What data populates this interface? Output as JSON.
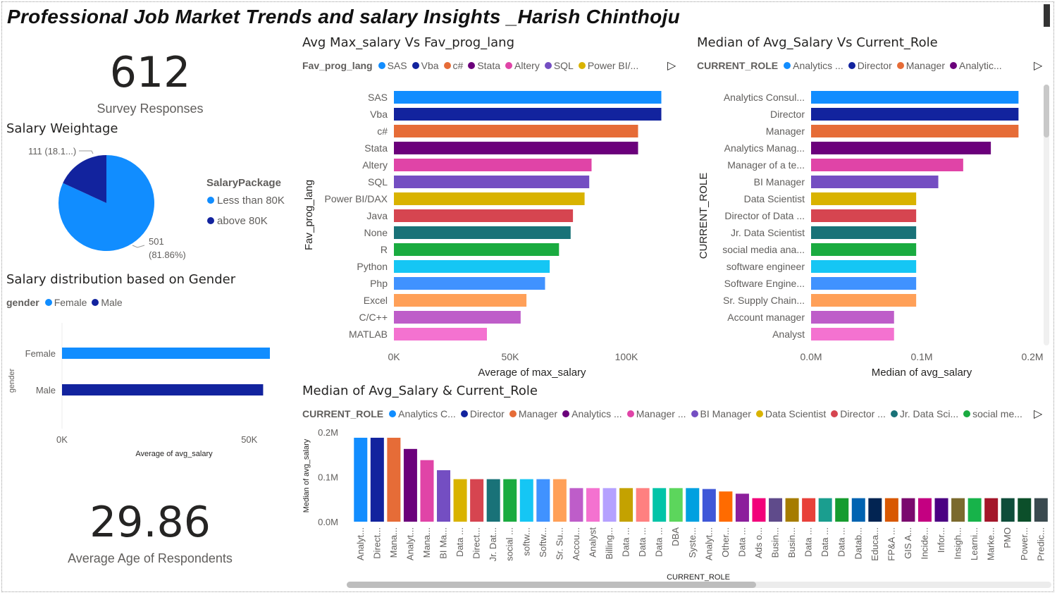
{
  "title": "Professional Job Market Trends and salary Insights _Harish Chinthoju",
  "kpi_responses": {
    "value": "612",
    "label": "Survey Responses"
  },
  "kpi_age": {
    "value": "29.86",
    "label": "Average Age of Respondents"
  },
  "pie_card": {
    "title": "Salary Weightage",
    "legend_title": "SalaryPackage",
    "label_small": "111 (18.1...)",
    "label_large_value": "501",
    "label_large_pct": "(81.86%)"
  },
  "gender_card": {
    "title": "Salary distribution based on Gender",
    "legend_title": "gender",
    "xlabel": "Average of avg_salary",
    "ylabel": "gender"
  },
  "lang_card": {
    "title": "Avg Max_salary Vs Fav_prog_lang",
    "legend_title": "Fav_prog_lang",
    "legend_items": [
      "SAS",
      "Vba",
      "c#",
      "Stata",
      "Altery",
      "SQL",
      "Power BI/..."
    ]
  },
  "role_card": {
    "title": "Median of Avg_Salary Vs Current_Role",
    "legend_title": "CURRENT_ROLE",
    "legend_items": [
      "Analytics ...",
      "Director",
      "Manager",
      "Analytic..."
    ]
  },
  "role_col_card": {
    "title": "Median of Avg_Salary & Current_Role",
    "legend_title": "CURRENT_ROLE",
    "legend_items": [
      "Analytics C...",
      "Director",
      "Manager",
      "Analytics ...",
      "Manager ...",
      "BI Manager",
      "Data Scientist",
      "Director ...",
      "Jr. Data Sci...",
      "social me..."
    ]
  },
  "colors": {
    "blue": "#118dff",
    "navy": "#12239e",
    "orange": "#e66c37",
    "purple": "#6b007b",
    "pink": "#e044a7",
    "violet": "#744ec2",
    "yellow": "#d9b300",
    "red": "#d64550",
    "teal": "#197278",
    "green": "#1aab40",
    "cyan": "#15c6f4",
    "cornflower": "#4092ff",
    "peach": "#ffa058",
    "magenta": "#be5dc9",
    "rose": "#f472d0"
  },
  "chart_data": [
    {
      "id": "salary_weightage",
      "type": "pie",
      "title": "Salary Weightage",
      "legend_title": "SalaryPackage",
      "labels": [
        "Less than 80K",
        "above 80K"
      ],
      "values": [
        501,
        111
      ],
      "colors": [
        "#118dff",
        "#12239e"
      ]
    },
    {
      "id": "gender",
      "type": "bar",
      "orientation": "horizontal",
      "title": "Salary distribution based on Gender",
      "categories": [
        "Female",
        "Male"
      ],
      "values": [
        55500,
        53700
      ],
      "colors": [
        "#118dff",
        "#12239e"
      ],
      "xlabel": "Average of avg_salary",
      "ylabel": "gender",
      "xlim": [
        0,
        55500
      ],
      "xticks": [
        {
          "v": 0,
          "label": "0K"
        },
        {
          "v": 50000,
          "label": "50K"
        }
      ],
      "grid": false
    },
    {
      "id": "fav_prog_lang",
      "type": "bar",
      "orientation": "horizontal",
      "title": "Avg Max_salary Vs Fav_prog_lang",
      "categories": [
        "SAS",
        "Vba",
        "c#",
        "Stata",
        "Altery",
        "SQL",
        "Power BI/DAX",
        "Java",
        "None",
        "R",
        "Python",
        "Php",
        "Excel",
        "C/C++",
        "MATLAB"
      ],
      "values": [
        115000,
        115000,
        105000,
        105000,
        85000,
        84000,
        82000,
        77000,
        76000,
        71000,
        67000,
        65000,
        57000,
        54500,
        40000
      ],
      "colors": [
        "#118dff",
        "#12239e",
        "#e66c37",
        "#6b007b",
        "#e044a7",
        "#744ec2",
        "#d9b300",
        "#d64550",
        "#197278",
        "#1aab40",
        "#15c6f4",
        "#4092ff",
        "#ffa058",
        "#be5dc9",
        "#f472d0"
      ],
      "xlabel": "Average of max_salary",
      "ylabel": "Fav_prog_lang",
      "xlim": [
        0,
        120000
      ],
      "xticks": [
        {
          "v": 0,
          "label": "0K"
        },
        {
          "v": 50000,
          "label": "50K"
        },
        {
          "v": 100000,
          "label": "100K"
        }
      ],
      "grid": false
    },
    {
      "id": "current_role_bar",
      "type": "bar",
      "orientation": "horizontal",
      "title": "Median of Avg_Salary Vs Current_Role",
      "categories": [
        "Analytics Consul...",
        "Director",
        "Manager",
        "Analytics Manag...",
        "Manager of a te...",
        "BI Manager",
        "Data Scientist",
        "Director of Data ...",
        "Jr. Data Scientist",
        "social media ana...",
        "software engineer",
        "Software Engine...",
        "Sr. Supply Chain...",
        "Account manager",
        "Analyst"
      ],
      "values": [
        187500,
        187500,
        187500,
        162500,
        137500,
        115000,
        95000,
        95000,
        95000,
        95000,
        95000,
        95000,
        95000,
        75000,
        75000
      ],
      "colors": [
        "#118dff",
        "#12239e",
        "#e66c37",
        "#6b007b",
        "#e044a7",
        "#744ec2",
        "#d9b300",
        "#d64550",
        "#197278",
        "#1aab40",
        "#15c6f4",
        "#4092ff",
        "#ffa058",
        "#be5dc9",
        "#f472d0"
      ],
      "xlabel": "Median of avg_salary",
      "ylabel": "CURRENT_ROLE",
      "xlim": [
        0,
        200000
      ],
      "xticks": [
        {
          "v": 0,
          "label": "0.0M"
        },
        {
          "v": 100000,
          "label": "0.1M"
        },
        {
          "v": 200000,
          "label": "0.2M"
        }
      ],
      "grid": false
    },
    {
      "id": "current_role_column",
      "type": "bar",
      "orientation": "vertical",
      "title": "Median of Avg_Salary & Current_Role",
      "categories": [
        "Analyt...",
        "Direct...",
        "Mana...",
        "Analyt...",
        "Mana...",
        "BI Ma...",
        "Data ...",
        "Direct...",
        "Jr. Dat...",
        "social ...",
        "softw...",
        "Softw...",
        "Sr. Su...",
        "Accou...",
        "Analyst",
        "Billing...",
        "Data ...",
        "Data ...",
        "Data ...",
        "DBA",
        "Syste...",
        "Analyt...",
        "Other...",
        "Data ...",
        "Ads o...",
        "Busin...",
        "Busin...",
        "Data ...",
        "Data ...",
        "Data ...",
        "Datab...",
        "Educa...",
        "FP&A ...",
        "GIS A...",
        "Incide...",
        "Infor...",
        "Insigh...",
        "Learni...",
        "Marke...",
        "PMO",
        "Power...",
        "Predic..."
      ],
      "values": [
        187500,
        187500,
        187500,
        162500,
        137500,
        115000,
        95000,
        95000,
        95000,
        95000,
        95000,
        95000,
        95000,
        75000,
        75000,
        75000,
        75000,
        75000,
        75000,
        75000,
        75000,
        73000,
        67500,
        62500,
        52500,
        52500,
        52500,
        52500,
        52500,
        52500,
        52500,
        52500,
        52500,
        52500,
        52500,
        52500,
        52500,
        52500,
        52500,
        52500,
        52500,
        52500
      ],
      "colors": [
        "#118dff",
        "#12239e",
        "#e66c37",
        "#6b007b",
        "#e044a7",
        "#744ec2",
        "#d9b300",
        "#d64550",
        "#197278",
        "#1aab40",
        "#15c6f4",
        "#4092ff",
        "#ffa058",
        "#be5dc9",
        "#f472d0",
        "#b5a1ff",
        "#c4a200",
        "#ff8080",
        "#00c4a8",
        "#5cd65c",
        "#00a0e0",
        "#3f57d8",
        "#ff6b00",
        "#8c1f9c",
        "#f2007a",
        "#5f4b8b",
        "#a67c00",
        "#e8413a",
        "#1a9e8f",
        "#169c2f",
        "#0063b1",
        "#022452",
        "#d85800",
        "#7a0a6e",
        "#c40081",
        "#4b0082",
        "#7b6a2e",
        "#17b34a",
        "#a3162a",
        "#0f4d3a",
        "#0c4f2a",
        "#3a4a4f"
      ],
      "xlabel": "CURRENT_ROLE",
      "ylabel": "Median of avg_salary",
      "ylim": [
        0,
        200000
      ],
      "yticks": [
        {
          "v": 0,
          "label": "0.0M"
        },
        {
          "v": 100000,
          "label": "0.1M"
        },
        {
          "v": 200000,
          "label": "0.2M"
        }
      ],
      "grid": false
    }
  ]
}
